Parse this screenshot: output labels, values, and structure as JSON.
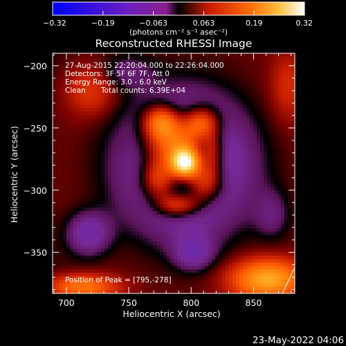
{
  "chart_data": {
    "type": "heatmap",
    "title": "Reconstructed RHESSI Image",
    "xlabel": "Heliocentric X (arcsec)",
    "ylabel": "Heliocentric Y (arcsec)",
    "xlim": [
      689,
      883
    ],
    "ylim": [
      -383,
      -190
    ],
    "x_ticks": [
      700,
      750,
      800,
      850
    ],
    "y_ticks": [
      -200,
      -250,
      -300,
      -350
    ],
    "colorbar": {
      "range": [
        -0.32,
        0.32
      ],
      "ticks": [
        "-0.32",
        "-0.19",
        "-0.063",
        "0.063",
        "0.19",
        "0.32"
      ],
      "unit_label": "(photons cm⁻² s⁻¹ asec⁻²)"
    },
    "annotations": {
      "time": "27-Aug-2015 22:20:04.000 to 22:26:04.000",
      "detectors": "Detectors: 3F 5F 6F 7F, Att 0",
      "energy": "Energy Range: 3.0 - 6.0 keV",
      "method": "Clean",
      "counts": "Total counts: 6.39E+04",
      "peak": "Position of Peak = [795,-278]"
    },
    "peak": [
      795,
      -278
    ],
    "sources": [
      {
        "x": 795,
        "y": -278,
        "amp": 0.34,
        "sx": 8,
        "sy": 8
      },
      {
        "x": 788,
        "y": -262,
        "amp": 0.22,
        "sx": 17,
        "sy": 12
      },
      {
        "x": 775,
        "y": -290,
        "amp": 0.18,
        "sx": 11,
        "sy": 13
      },
      {
        "x": 810,
        "y": -293,
        "amp": 0.17,
        "sx": 11,
        "sy": 12
      },
      {
        "x": 776,
        "y": -245,
        "amp": 0.17,
        "sx": 10,
        "sy": 9
      },
      {
        "x": 808,
        "y": -246,
        "amp": 0.15,
        "sx": 10,
        "sy": 9
      },
      {
        "x": 790,
        "y": -312,
        "amp": 0.13,
        "sx": 12,
        "sy": 7
      },
      {
        "x": 818,
        "y": -270,
        "amp": 0.09,
        "sx": 6,
        "sy": 12
      },
      {
        "x": 862,
        "y": -372,
        "amp": 0.19,
        "sx": 20,
        "sy": 11
      },
      {
        "x": 712,
        "y": -378,
        "amp": 0.13,
        "sx": 20,
        "sy": 7
      },
      {
        "x": 720,
        "y": -220,
        "amp": 0.06,
        "sx": 14,
        "sy": 14
      },
      {
        "x": 878,
        "y": -215,
        "amp": 0.05,
        "sx": 10,
        "sy": 20
      },
      {
        "x": 795,
        "y": -280,
        "amp": -0.26,
        "sx": 45,
        "sy": 48
      },
      {
        "x": 795,
        "y": -280,
        "amp": 0.15,
        "sx": 78,
        "sy": 82
      },
      {
        "x": 718,
        "y": -335,
        "amp": -0.1,
        "sx": 12,
        "sy": 12
      },
      {
        "x": 802,
        "y": -350,
        "amp": -0.08,
        "sx": 11,
        "sy": 10
      },
      {
        "x": 865,
        "y": -320,
        "amp": -0.05,
        "sx": 10,
        "sy": 14
      },
      {
        "x": 748,
        "y": -205,
        "amp": -0.05,
        "sx": 15,
        "sy": 10
      }
    ],
    "base_level": -0.02,
    "limb_arc": [
      [
        873,
        -383
      ],
      [
        883,
        -362
      ]
    ]
  },
  "footer": {
    "date": "23-May-2022 04:06"
  }
}
